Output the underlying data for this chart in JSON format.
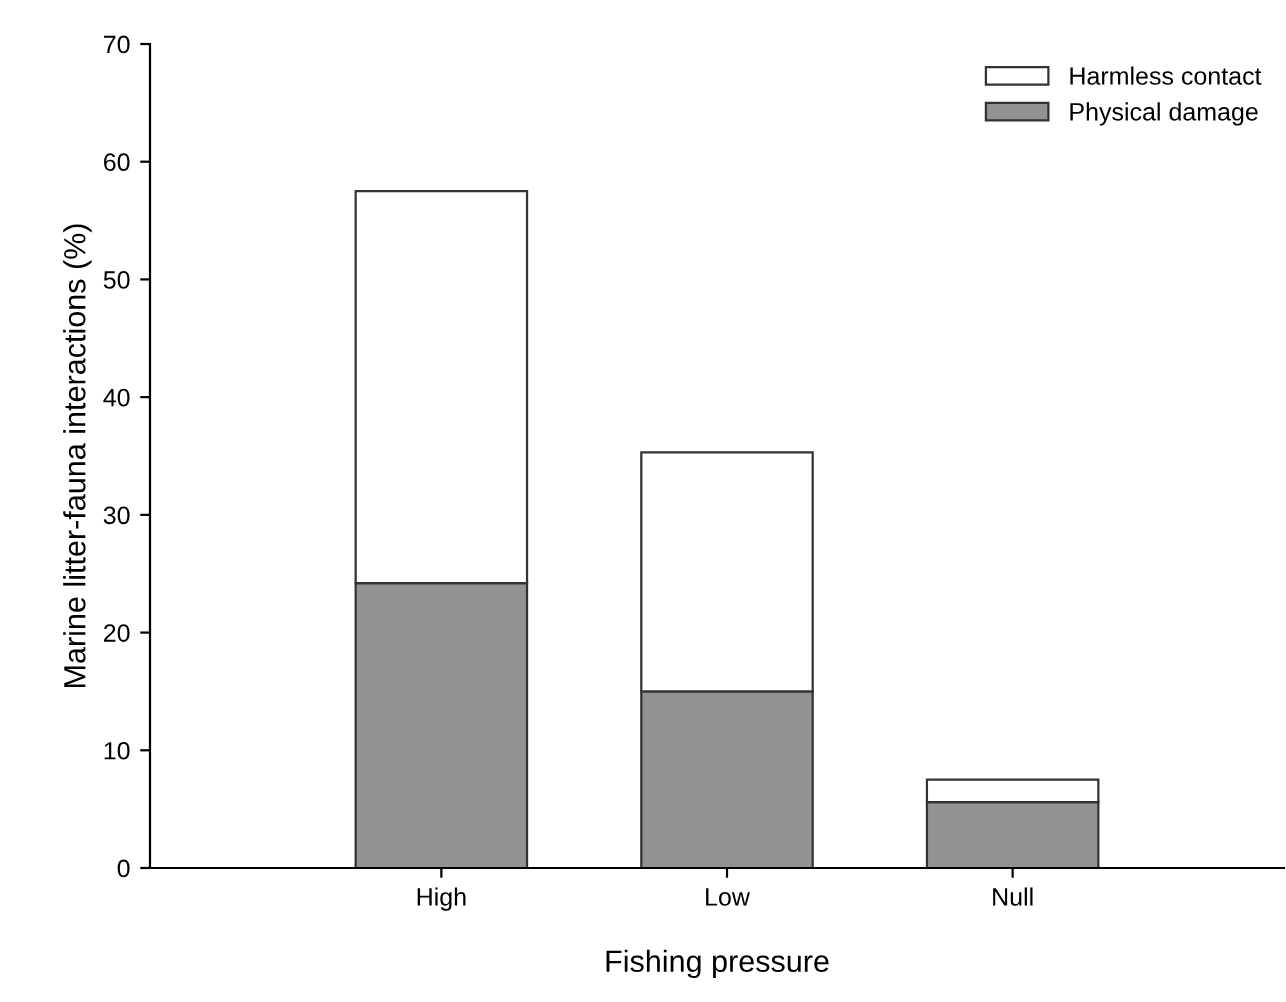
{
  "chart_data": {
    "type": "bar",
    "xlabel": "Fishing pressure",
    "ylabel": "Marine litter-fauna interactions (%)",
    "categories": [
      "High",
      "Low",
      "Null"
    ],
    "stacked": true,
    "series": [
      {
        "name": "Physical damage",
        "color": "#929292",
        "values": [
          24.2,
          15.0,
          5.6
        ]
      },
      {
        "name": "Harmless contact",
        "color": "#ffffff",
        "values": [
          33.3,
          20.3,
          1.9
        ]
      }
    ],
    "ylim": [
      0,
      70
    ],
    "yticks": [
      0,
      10,
      20,
      30,
      40,
      50,
      60,
      70
    ],
    "grid": false,
    "legend": "top right"
  }
}
